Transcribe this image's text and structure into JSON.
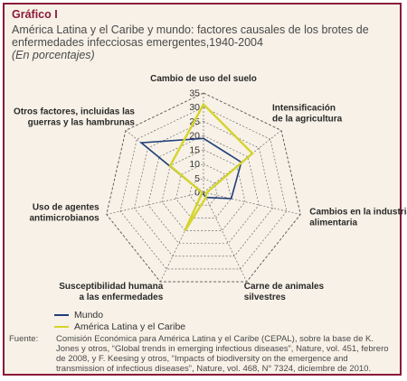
{
  "header": {
    "title": "Gráfico I",
    "subtitle": "América Latina y el Caribe y mundo: factores causales de los brotes de enfermedades infecciosas emergentes,1940-2004",
    "unit": "(En porcentajes)"
  },
  "legend": {
    "items": [
      {
        "label": "Mundo",
        "color": "#1f3f7a"
      },
      {
        "label": "América Latina y el Caribe",
        "color": "#d4d42a"
      }
    ]
  },
  "source": {
    "label": "Fuente:",
    "text": "Comisión Económica para América Latina y el Caribe (CEPAL), sobre la base de K. Jones y otros, “Global trends in emerging infectious diseases”, Nature, vol. 451, febrero de 2008, y F. Keesing y otros, “Impacts of biodiversity on the emergence and transmission of infectious diseases”, Nature, vol. 468, N° 7324, diciembre de 2010."
  },
  "chart_data": {
    "type": "radar",
    "categories": [
      "Cambio de uso del suelo",
      "Intensificación de la agricultura",
      "Cambios en la industria alimentaria",
      "Carne de animales silvestres",
      "Susceptibilidad humana a las enfermedades",
      "Uso de agentes antimicrobianos",
      "Otros factores, incluidas las guerras y las hambrunas"
    ],
    "category_lines": [
      [
        "Cambio de uso del suelo"
      ],
      [
        "Intensificación",
        "de la agricultura"
      ],
      [
        "Cambios en la industria",
        "alimentaria"
      ],
      [
        "Carne de animales",
        "silvestres"
      ],
      [
        "Susceptibilidad humana",
        "a las enfermedades"
      ],
      [
        "Uso de agentes",
        "antimicrobianos"
      ],
      [
        "Otros factores, incluidas las",
        "guerras y las hambrunas"
      ]
    ],
    "ticks": [
      0,
      5,
      10,
      15,
      20,
      25,
      30,
      35
    ],
    "rlim": [
      0,
      35
    ],
    "series": [
      {
        "name": "Mundo",
        "color": "#1f3f7a",
        "values": [
          19,
          17,
          10,
          2,
          0.5,
          0.5,
          28
        ]
      },
      {
        "name": "América Latina y el Caribe",
        "color": "#d4d42a",
        "values": [
          31,
          22,
          1,
          2,
          15,
          0.5,
          15
        ]
      }
    ]
  }
}
